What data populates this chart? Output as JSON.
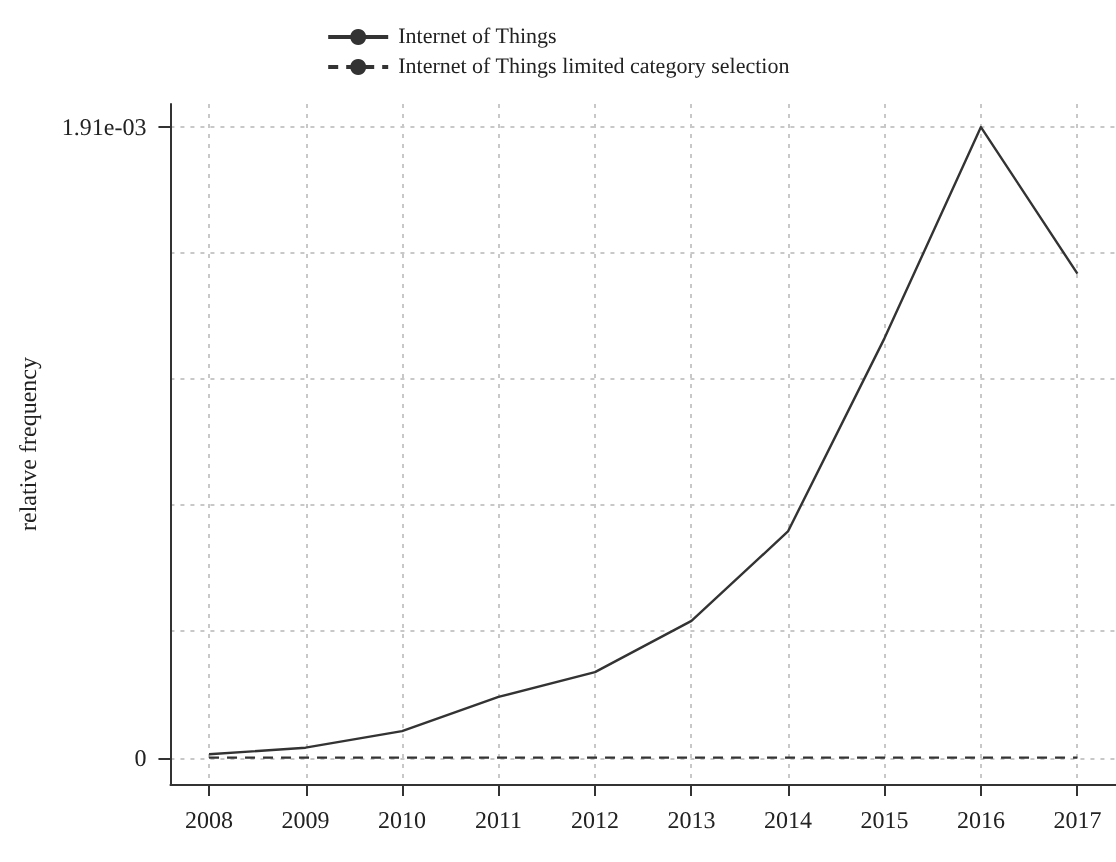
{
  "chart_data": {
    "type": "line",
    "ylabel": "relative frequency",
    "x": [
      2008,
      2009,
      2010,
      2011,
      2012,
      2013,
      2014,
      2015,
      2016,
      2017
    ],
    "series": [
      {
        "name": "Internet of Things",
        "color": "#333333",
        "line_style": "solid",
        "values": [
          1e-05,
          3e-05,
          8e-05,
          0.000184,
          0.000259,
          0.000414,
          0.000685,
          0.00127,
          0.00191,
          0.001466
        ]
      },
      {
        "name": "Internet of Things limited category selection",
        "color": "#333333",
        "line_style": "dashed",
        "values": [
          0,
          0,
          0,
          0,
          0,
          0,
          0,
          0,
          0,
          0
        ]
      }
    ],
    "xlim": [
      2007.6,
      2017.4
    ],
    "xticks": [
      2008,
      2009,
      2010,
      2011,
      2012,
      2013,
      2014,
      2015,
      2016,
      2017
    ],
    "ylim": [
      -8e-05,
      0.00198
    ],
    "yticks": [
      0,
      {
        "value": 0.000382,
        "label": null
      },
      {
        "value": 0.000764,
        "label": null
      },
      {
        "value": 0.001146,
        "label": null
      },
      {
        "value": 0.001528,
        "label": null
      },
      {
        "value": 0.00191,
        "label": "1.91e-03"
      }
    ],
    "grid": true,
    "legend": "top",
    "marker": "none"
  }
}
